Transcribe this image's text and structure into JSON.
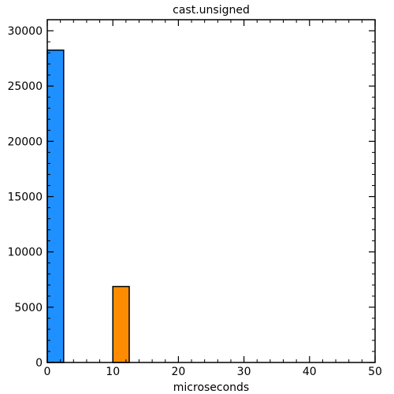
{
  "chart_data": {
    "type": "bar",
    "title": "cast.unsigned",
    "xlabel": "microseconds",
    "ylabel": "",
    "xlim": [
      0,
      50
    ],
    "ylim": [
      0,
      31000
    ],
    "xticks": [
      0,
      10,
      20,
      30,
      40,
      50
    ],
    "yticks": [
      0,
      5000,
      10000,
      15000,
      20000,
      25000,
      30000
    ],
    "grid": false,
    "bins": [
      {
        "x0": 0,
        "x1": 2.5,
        "value": 28250,
        "color": "#1e90ff"
      },
      {
        "x0": 10,
        "x1": 12.5,
        "value": 6870,
        "color": "#ff8c00"
      }
    ]
  }
}
